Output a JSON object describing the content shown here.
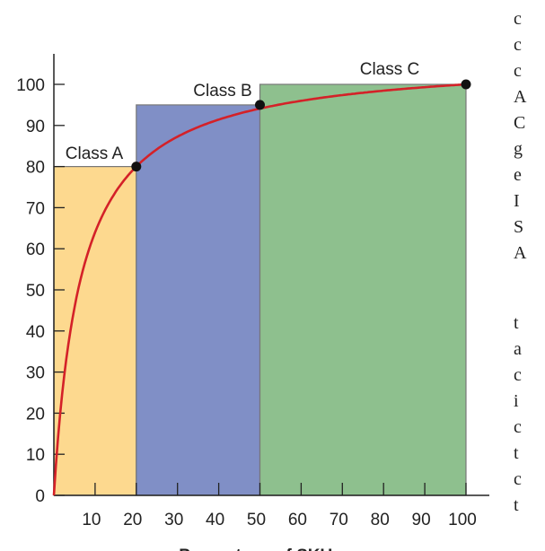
{
  "page_fragments": {
    "right_column": [
      "c",
      "c",
      "c",
      "A",
      "C",
      "g",
      "e",
      "I",
      "S",
      "A",
      "t",
      "a",
      "c",
      "i",
      "c",
      "t",
      "c",
      "t"
    ]
  },
  "chart_data": {
    "type": "bar",
    "bars": [
      {
        "label": "Class A",
        "x_start": 0,
        "x_end": 20,
        "value": 80,
        "color": "#fdd98f"
      },
      {
        "label": "Class B",
        "x_start": 20,
        "x_end": 50,
        "value": 95,
        "color": "#808fc6"
      },
      {
        "label": "Class C",
        "x_start": 50,
        "x_end": 100,
        "value": 100,
        "color": "#8ec08e"
      }
    ],
    "curve": {
      "color": "#d42128",
      "points": [
        [
          0,
          0
        ],
        [
          20,
          80
        ],
        [
          50,
          95
        ],
        [
          100,
          100
        ]
      ],
      "markers": [
        [
          20,
          80
        ],
        [
          50,
          95
        ],
        [
          100,
          100
        ]
      ]
    },
    "xlim": [
      0,
      100
    ],
    "ylim": [
      0,
      100
    ],
    "x_ticks": [
      10,
      20,
      30,
      40,
      50,
      60,
      70,
      80,
      90,
      100
    ],
    "y_ticks": [
      0,
      10,
      20,
      30,
      40,
      50,
      60,
      70,
      80,
      90,
      100
    ],
    "xlabel": "Percentage of SKUs",
    "ylabel": "",
    "grid": false
  }
}
